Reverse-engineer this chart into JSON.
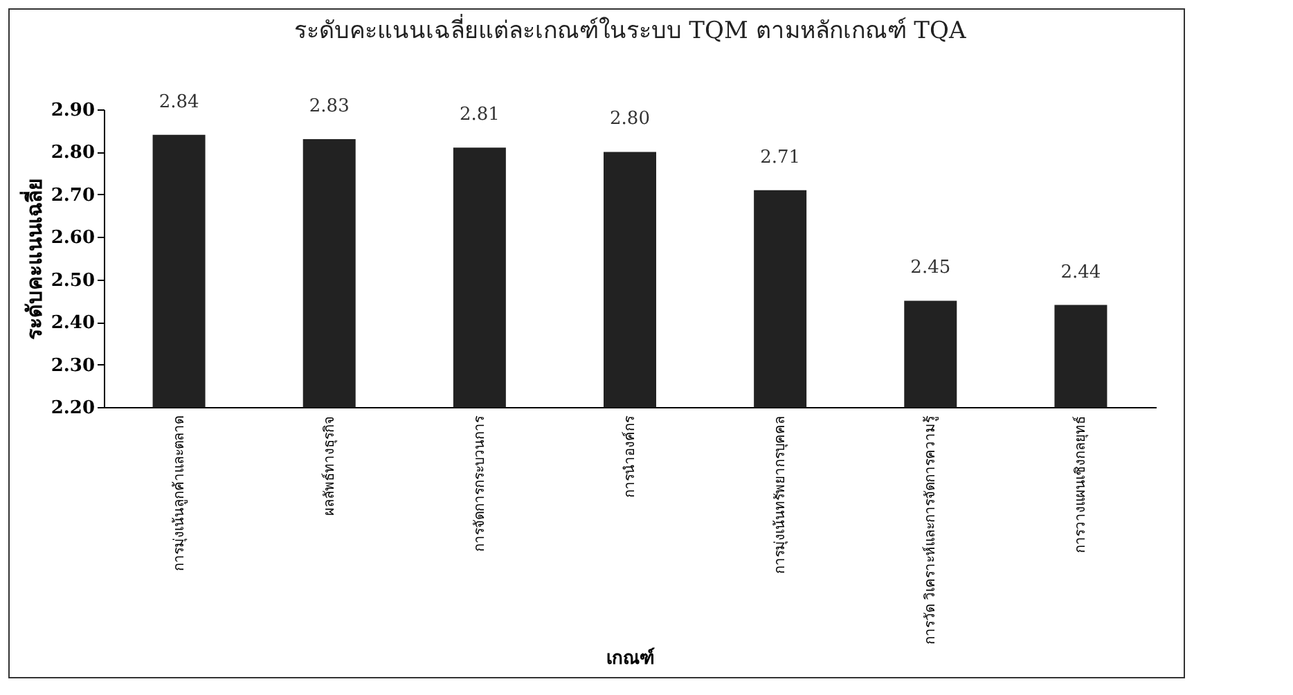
{
  "chart_data": {
    "type": "bar",
    "title": "ระดับคะแนนเฉลี่ยแต่ละเกณฑ์ในระบบ TQM ตามหลักเกณฑ์ TQA",
    "xlabel": "เกณฑ์",
    "ylabel": "ระดับคะแนนเฉลี่ย",
    "categories": [
      "การมุ่งเน้นลูกค้าและตลาด",
      "ผลลัพธ์ทางธุรกิจ",
      "การจัดการกระบวนการ",
      "การนำองค์กร",
      "การมุ่งเน้นทรัพยากรบุคคล",
      "การวัด วิเคราะห์และการจัดการความรู้",
      "การวางแผนเชิงกลยุทธ์"
    ],
    "values": [
      2.84,
      2.83,
      2.81,
      2.8,
      2.71,
      2.45,
      2.44
    ],
    "value_labels": [
      "2.84",
      "2.83",
      "2.81",
      "2.80",
      "2.71",
      "2.45",
      "2.44"
    ],
    "color": "#222222",
    "ylim": [
      2.2,
      2.9
    ],
    "yticks": [
      {
        "value": 2.2,
        "label": "2.20"
      },
      {
        "value": 2.3,
        "label": "2.30"
      },
      {
        "value": 2.4,
        "label": "2.40"
      },
      {
        "value": 2.5,
        "label": "2.50"
      },
      {
        "value": 2.6,
        "label": "2.60"
      },
      {
        "value": 2.7,
        "label": "2.70"
      },
      {
        "value": 2.8,
        "label": "2.80"
      },
      {
        "value": 2.9,
        "label": "2.90"
      }
    ],
    "grid": false
  }
}
